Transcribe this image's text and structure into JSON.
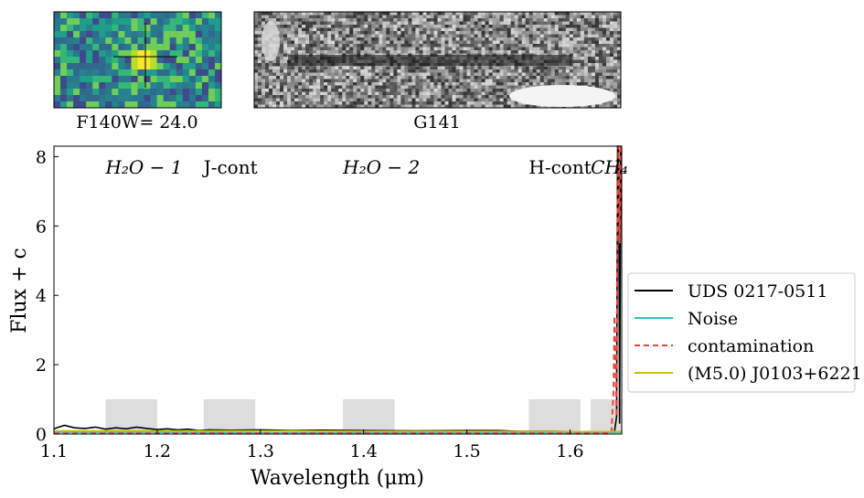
{
  "thumbnails": [
    {
      "label": "F140W= 24.0"
    },
    {
      "label": "G141"
    }
  ],
  "chart_data": {
    "type": "line",
    "title": "",
    "xlabel": "Wavelength (μm)",
    "ylabel": "Flux + c",
    "xlim": [
      1.1,
      1.65
    ],
    "ylim": [
      0,
      8.3
    ],
    "xticks": [
      1.1,
      1.2,
      1.3,
      1.4,
      1.5,
      1.6
    ],
    "yticks": [
      0,
      2,
      4,
      6,
      8
    ],
    "grid": false,
    "legend_position": "right",
    "bands": [
      {
        "label": "H₂O − 1",
        "x0": 1.15,
        "x1": 1.2,
        "ymax": 1.0
      },
      {
        "label": "J-cont",
        "x0": 1.245,
        "x1": 1.295,
        "ymax": 1.0
      },
      {
        "label": "H₂O − 2",
        "x0": 1.38,
        "x1": 1.43,
        "ymax": 1.0
      },
      {
        "label": "H-cont",
        "x0": 1.56,
        "x1": 1.61,
        "ymax": 1.0
      },
      {
        "label": "CH₄",
        "x0": 1.62,
        "x1": 1.67,
        "ymax": 1.0
      }
    ],
    "series": [
      {
        "name": "UDS 0217-0511",
        "color": "#000000",
        "style": "solid",
        "x": [
          1.1,
          1.105,
          1.11,
          1.12,
          1.13,
          1.14,
          1.15,
          1.16,
          1.17,
          1.18,
          1.19,
          1.2,
          1.21,
          1.22,
          1.23,
          1.24,
          1.25,
          1.27,
          1.3,
          1.33,
          1.36,
          1.4,
          1.45,
          1.5,
          1.53,
          1.55,
          1.58,
          1.6,
          1.62,
          1.64,
          1.643,
          1.645,
          1.646,
          1.647,
          1.648,
          1.649,
          1.65
        ],
        "y": [
          0.15,
          0.2,
          0.25,
          0.18,
          0.16,
          0.2,
          0.14,
          0.18,
          0.15,
          0.2,
          0.16,
          0.13,
          0.15,
          0.12,
          0.14,
          0.1,
          0.12,
          0.11,
          0.12,
          0.1,
          0.11,
          0.1,
          0.09,
          0.1,
          0.1,
          0.08,
          0.08,
          0.07,
          0.07,
          0.07,
          0.07,
          0.5,
          8.3,
          8.3,
          0.3,
          8.3,
          8.3
        ]
      },
      {
        "name": "Noise",
        "color": "#2ec4c4",
        "style": "solid",
        "x": [
          1.1,
          1.2,
          1.3,
          1.4,
          1.5,
          1.6,
          1.65
        ],
        "y": [
          0.05,
          0.05,
          0.04,
          0.04,
          0.04,
          0.04,
          0.05
        ]
      },
      {
        "name": "contamination",
        "color": "#e8453c",
        "style": "dashed",
        "x": [
          1.1,
          1.2,
          1.3,
          1.4,
          1.5,
          1.6,
          1.64,
          1.642,
          1.643,
          1.645,
          1.646,
          1.647,
          1.648,
          1.649,
          1.65
        ],
        "y": [
          0.02,
          0.02,
          0.02,
          0.02,
          0.02,
          0.02,
          0.03,
          1.2,
          3.4,
          0.5,
          6.5,
          8.3,
          5.5,
          8.3,
          8.3
        ]
      },
      {
        "name": "(M5.0) J0103+6221",
        "color": "#c8c000",
        "style": "solid",
        "x": [
          1.1,
          1.2,
          1.3,
          1.4,
          1.5,
          1.6,
          1.65
        ],
        "y": [
          0.09,
          0.09,
          0.09,
          0.08,
          0.08,
          0.07,
          0.07
        ]
      }
    ]
  }
}
